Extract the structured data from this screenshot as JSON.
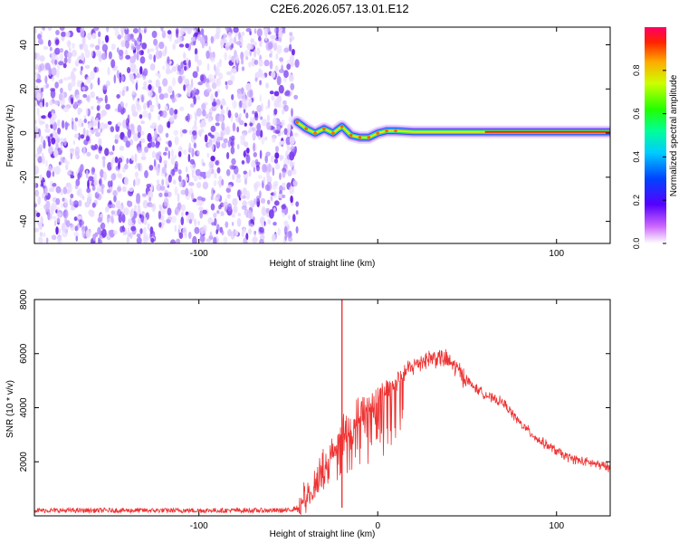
{
  "title": "C2E6.2026.057.13.01.E12",
  "chart_data": [
    {
      "type": "heatmap",
      "xlabel": "Height of straight line (km)",
      "ylabel": "Frequency (Hz)",
      "xlim": [
        -192,
        130
      ],
      "ylim": [
        -50,
        48
      ],
      "x_ticks": [
        -100,
        0,
        100
      ],
      "x_tick_labels": [
        "-100",
        "",
        "100"
      ],
      "y_ticks": [
        -40,
        -20,
        0,
        20,
        40
      ],
      "y_tick_labels": [
        "-40",
        "-20",
        "0",
        "20",
        "40"
      ],
      "noise_region_x": [
        -192,
        -45
      ],
      "ridge": {
        "x": [
          -45,
          -40,
          -35,
          -30,
          -25,
          -20,
          -15,
          -10,
          -5,
          0,
          5,
          10,
          20,
          30,
          40,
          50,
          60,
          70,
          80,
          90,
          100,
          110,
          120,
          130
        ],
        "y": [
          5,
          2,
          0,
          2,
          0,
          3,
          -1,
          -2,
          -2,
          0,
          1,
          1,
          0.5,
          0.5,
          0.5,
          0.5,
          0.5,
          0.5,
          0.5,
          0.5,
          0.5,
          0.5,
          0.5,
          0.5
        ]
      },
      "colorbar": {
        "label": "Normalized spectral amplitude",
        "range": [
          0,
          1
        ],
        "ticks": [
          0.0,
          0.2,
          0.4,
          0.6,
          0.8
        ],
        "tick_labels": [
          "0.0",
          "0.2",
          "0.4",
          "0.6",
          "0.8"
        ]
      },
      "grid": false
    },
    {
      "type": "line",
      "xlabel": "Height of straight line (km)",
      "ylabel": "SNR (10 * v/v)",
      "xlim": [
        -192,
        130
      ],
      "ylim": [
        0,
        8000
      ],
      "x_ticks": [
        -100,
        0,
        100
      ],
      "x_tick_labels": [
        "-100",
        "0",
        "100"
      ],
      "y_ticks": [
        2000,
        4000,
        6000,
        8000
      ],
      "y_tick_labels": [
        "2000",
        "4000",
        "6000",
        "8000"
      ],
      "color": "#ee3333",
      "x": [
        -192,
        -100,
        -50,
        -45,
        -40,
        -35,
        -30,
        -28,
        -25,
        -22,
        -20,
        -18,
        -15,
        -10,
        -5,
        0,
        5,
        10,
        15,
        20,
        25,
        30,
        35,
        40,
        45,
        50,
        55,
        60,
        65,
        70,
        75,
        80,
        85,
        90,
        95,
        100,
        105,
        110,
        115,
        120,
        125,
        130
      ],
      "values": [
        200,
        200,
        200,
        300,
        700,
        1300,
        1900,
        2100,
        2400,
        2800,
        3000,
        3100,
        3300,
        3800,
        4100,
        4400,
        4700,
        5000,
        5300,
        5550,
        5750,
        5850,
        5850,
        5700,
        5400,
        5000,
        4700,
        4500,
        4300,
        4200,
        3800,
        3400,
        3100,
        2800,
        2600,
        2400,
        2200,
        2100,
        2000,
        1950,
        1850,
        1800
      ],
      "spike_x": -20,
      "spike_value": 8000,
      "grid": false
    }
  ]
}
